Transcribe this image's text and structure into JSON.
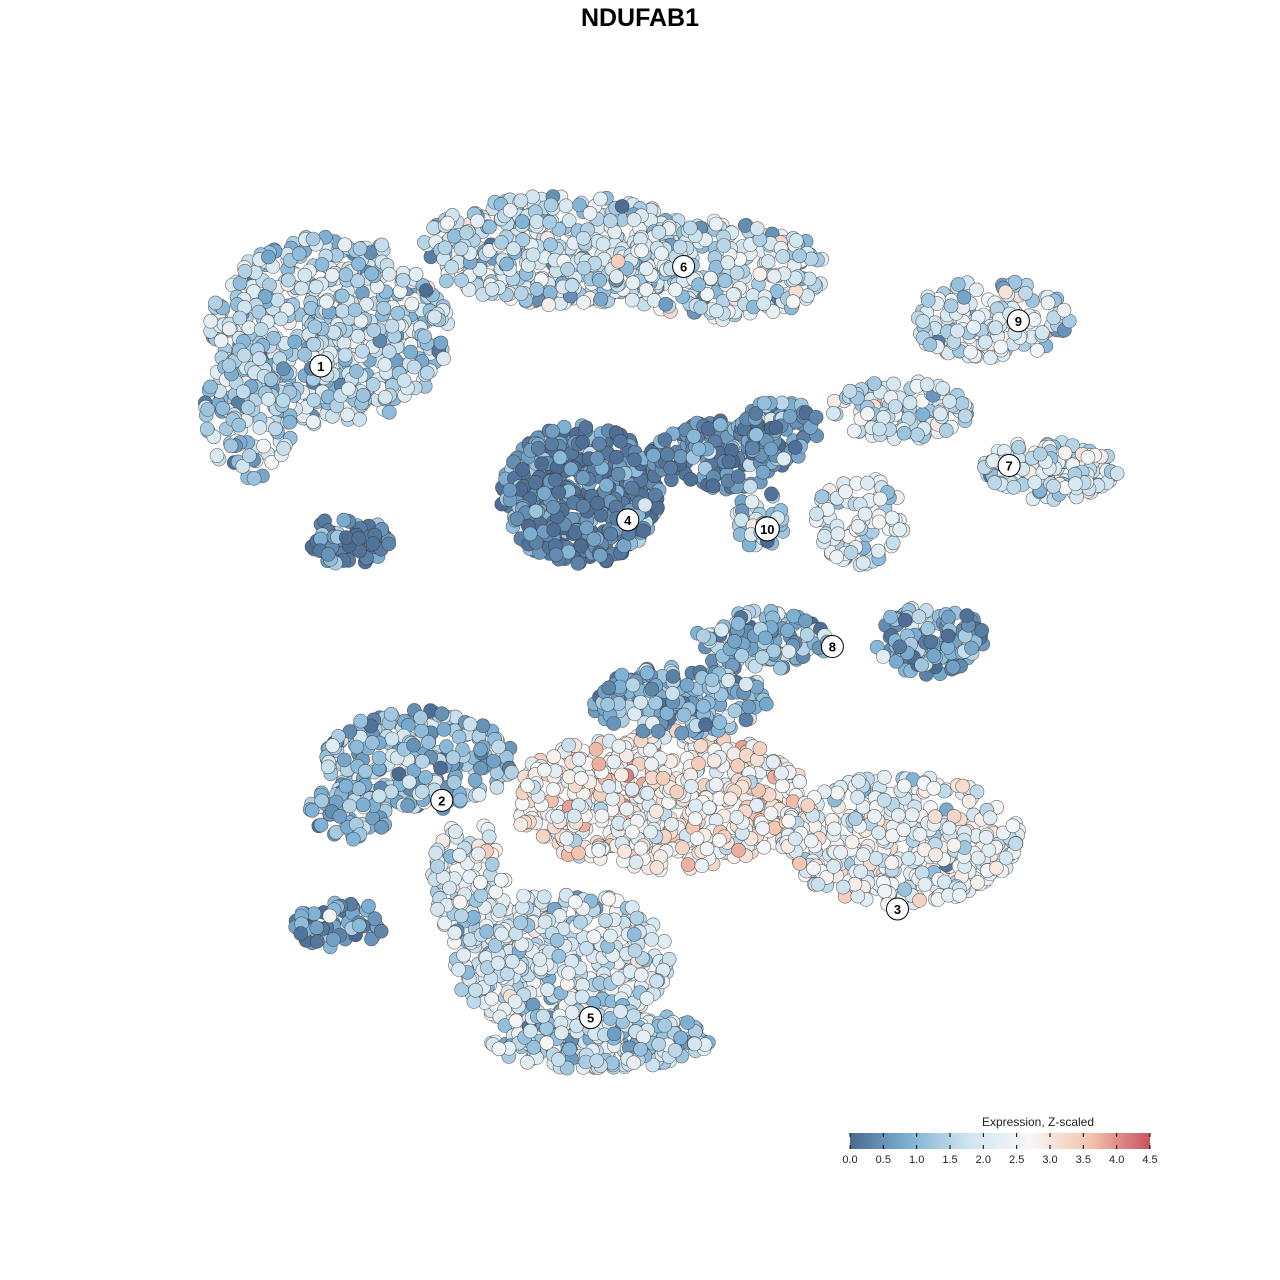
{
  "chart_data": {
    "type": "scatter",
    "title": "NDUFAB1",
    "xlabel": "",
    "ylabel": "",
    "grid": false,
    "color_scale": {
      "title": "Expression, Z-scaled",
      "min": 0.0,
      "max": 4.5,
      "ticks": [
        "0.0",
        "0.5",
        "1.0",
        "1.5",
        "2.0",
        "2.5",
        "3.0",
        "3.5",
        "4.0",
        "4.5"
      ],
      "stops": [
        "#4b6a91",
        "#7fb2d5",
        "#d2e5f0",
        "#f7f7f7",
        "#f3c4ad",
        "#c9525e"
      ],
      "legend_position": "bottom-right"
    },
    "clusters": [
      {
        "label": "1",
        "x": 0.13,
        "y": 0.8,
        "typical_expression": 1.6
      },
      {
        "label": "2",
        "x": 0.26,
        "y": 0.32,
        "typical_expression": 1.2
      },
      {
        "label": "3",
        "x": 0.75,
        "y": 0.2,
        "typical_expression": 2.3
      },
      {
        "label": "4",
        "x": 0.46,
        "y": 0.63,
        "typical_expression": 0.4
      },
      {
        "label": "5",
        "x": 0.42,
        "y": 0.08,
        "typical_expression": 1.9
      },
      {
        "label": "6",
        "x": 0.52,
        "y": 0.91,
        "typical_expression": 1.7
      },
      {
        "label": "7",
        "x": 0.87,
        "y": 0.69,
        "typical_expression": 1.8
      },
      {
        "label": "8",
        "x": 0.68,
        "y": 0.49,
        "typical_expression": 0.9
      },
      {
        "label": "9",
        "x": 0.88,
        "y": 0.85,
        "typical_expression": 1.9
      },
      {
        "label": "10",
        "x": 0.61,
        "y": 0.62,
        "typical_expression": 1.2
      }
    ]
  }
}
